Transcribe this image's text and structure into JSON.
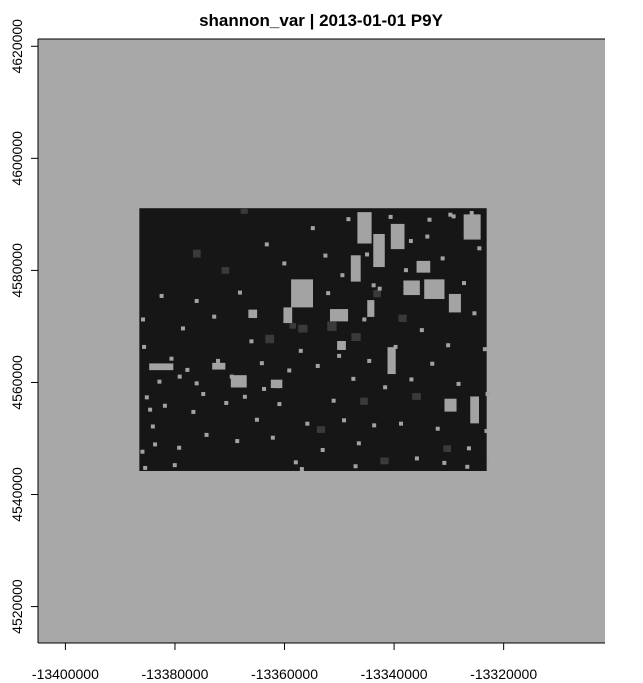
{
  "chart_data": {
    "type": "heatmap",
    "title": "shannon_var | 2013-01-01 P9Y",
    "xlabel": "",
    "ylabel": "",
    "xlim": [
      -13405000,
      -13301500
    ],
    "ylim": [
      4513500,
      4621300
    ],
    "x_ticks": [
      -13400000,
      -13380000,
      -13360000,
      -13340000,
      -13320000
    ],
    "x_tick_labels": [
      "-13400000",
      "-13380000",
      "-13360000",
      "-13340000",
      "-13320000"
    ],
    "y_ticks": [
      4520000,
      4540000,
      4560000,
      4580000,
      4600000,
      4620000
    ],
    "y_tick_labels": [
      "4520000",
      "4540000",
      "4560000",
      "4580000",
      "4600000",
      "4620000"
    ],
    "raster_extent": {
      "xmin": -13386500,
      "xmax": -13323100,
      "ymin": 4544200,
      "ymax": 4591100
    },
    "grid": false,
    "legend": "none",
    "colors": {
      "background": "#a8a8a8",
      "raster_low": "#161616",
      "raster_mid": "#3a3a3a",
      "raster_high": "#a3a3a3",
      "axis": "#000000"
    },
    "patches": [
      {
        "x0": -13358800,
        "x1": -13354800,
        "y0": 4573400,
        "y1": 4578400,
        "level": "high"
      },
      {
        "x0": -13360200,
        "x1": -13358600,
        "y0": 4570600,
        "y1": 4573400,
        "level": "high"
      },
      {
        "x0": -13346700,
        "x1": -13344100,
        "y0": 4584800,
        "y1": 4590400,
        "level": "high"
      },
      {
        "x0": -13343800,
        "x1": -13341700,
        "y0": 4580600,
        "y1": 4586500,
        "level": "high"
      },
      {
        "x0": -13340600,
        "x1": -13338100,
        "y0": 4583800,
        "y1": 4588300,
        "level": "high"
      },
      {
        "x0": -13334500,
        "x1": -13330800,
        "y0": 4574900,
        "y1": 4578400,
        "level": "high"
      },
      {
        "x0": -13330000,
        "x1": -13327800,
        "y0": 4572500,
        "y1": 4575800,
        "level": "high"
      },
      {
        "x0": -13327300,
        "x1": -13324200,
        "y0": 4585500,
        "y1": 4590000,
        "level": "high"
      },
      {
        "x0": -13338300,
        "x1": -13335300,
        "y0": 4575600,
        "y1": 4578200,
        "level": "high"
      },
      {
        "x0": -13341200,
        "x1": -13339700,
        "y0": 4561500,
        "y1": 4566300,
        "level": "high"
      },
      {
        "x0": -13369800,
        "x1": -13366900,
        "y0": 4559100,
        "y1": 4561300,
        "level": "high"
      },
      {
        "x0": -13384700,
        "x1": -13380300,
        "y0": 4562200,
        "y1": 4563400,
        "level": "high"
      },
      {
        "x0": -13351700,
        "x1": -13348400,
        "y0": 4570900,
        "y1": 4573100,
        "level": "high"
      },
      {
        "x0": -13326100,
        "x1": -13324500,
        "y0": 4552700,
        "y1": 4557500,
        "level": "high"
      },
      {
        "x0": -13330800,
        "x1": -13328600,
        "y0": 4554800,
        "y1": 4557100,
        "level": "high"
      },
      {
        "x0": -13362500,
        "x1": -13360400,
        "y0": 4559000,
        "y1": 4560500,
        "level": "high"
      },
      {
        "x0": -13373200,
        "x1": -13370800,
        "y0": 4562300,
        "y1": 4563500,
        "level": "high"
      },
      {
        "x0": -13350400,
        "x1": -13348800,
        "y0": 4565800,
        "y1": 4567400,
        "level": "high"
      },
      {
        "x0": -13335900,
        "x1": -13333400,
        "y0": 4579600,
        "y1": 4581700,
        "level": "high"
      },
      {
        "x0": -13366600,
        "x1": -13365000,
        "y0": 4571500,
        "y1": 4573000,
        "level": "high"
      },
      {
        "x0": -13347900,
        "x1": -13346100,
        "y0": 4578000,
        "y1": 4582700,
        "level": "high"
      },
      {
        "x0": -13344900,
        "x1": -13343600,
        "y0": 4571700,
        "y1": 4574700,
        "level": "high"
      },
      {
        "x0": -13322900,
        "x1": -13322700,
        "y0": 4544800,
        "y1": 4546400,
        "level": "high"
      },
      {
        "x0": -13352200,
        "x1": -13350500,
        "y0": 4569200,
        "y1": 4570900,
        "level": "mid"
      },
      {
        "x0": -13357500,
        "x1": -13355800,
        "y0": 4568900,
        "y1": 4570300,
        "level": "mid"
      },
      {
        "x0": -13363500,
        "x1": -13361900,
        "y0": 4567000,
        "y1": 4568500,
        "level": "mid"
      },
      {
        "x0": -13347800,
        "x1": -13346100,
        "y0": 4567400,
        "y1": 4568800,
        "level": "mid"
      },
      {
        "x0": -13339200,
        "x1": -13337700,
        "y0": 4570800,
        "y1": 4572100,
        "level": "mid"
      },
      {
        "x0": -13343800,
        "x1": -13342400,
        "y0": 4575200,
        "y1": 4576500,
        "level": "mid"
      },
      {
        "x0": -13376700,
        "x1": -13375300,
        "y0": 4582300,
        "y1": 4583700,
        "level": "mid"
      },
      {
        "x0": -13368000,
        "x1": -13366700,
        "y0": 4590100,
        "y1": 4591000,
        "level": "mid"
      },
      {
        "x0": -13359100,
        "x1": -13357900,
        "y0": 4569600,
        "y1": 4570600,
        "level": "mid"
      },
      {
        "x0": -13346200,
        "x1": -13344800,
        "y0": 4556000,
        "y1": 4557300,
        "level": "mid"
      },
      {
        "x0": -13371500,
        "x1": -13370100,
        "y0": 4579400,
        "y1": 4580600,
        "level": "mid"
      },
      {
        "x0": -13354100,
        "x1": -13352600,
        "y0": 4551000,
        "y1": 4552200,
        "level": "mid"
      },
      {
        "x0": -13331000,
        "x1": -13329600,
        "y0": 4547600,
        "y1": 4548800,
        "level": "mid"
      },
      {
        "x0": -13336700,
        "x1": -13335100,
        "y0": 4556900,
        "y1": 4558100,
        "level": "mid"
      },
      {
        "x0": -13342500,
        "x1": -13341000,
        "y0": 4545400,
        "y1": 4546600,
        "level": "mid"
      }
    ],
    "speckles": [
      [
        -13386200,
        4571600
      ],
      [
        -13386000,
        4566700
      ],
      [
        -13385500,
        4557700
      ],
      [
        -13384900,
        4555500
      ],
      [
        -13384400,
        4552500
      ],
      [
        -13384000,
        4549300
      ],
      [
        -13382800,
        4575800
      ],
      [
        -13382200,
        4556200
      ],
      [
        -13381000,
        4564600
      ],
      [
        -13379600,
        4548700
      ],
      [
        -13378900,
        4570000
      ],
      [
        -13378100,
        4562600
      ],
      [
        -13377000,
        4555100
      ],
      [
        -13376400,
        4574900
      ],
      [
        -13375200,
        4558300
      ],
      [
        -13374600,
        4551000
      ],
      [
        -13373200,
        4572100
      ],
      [
        -13372500,
        4564200
      ],
      [
        -13371000,
        4556700
      ],
      [
        -13370000,
        4561400
      ],
      [
        -13369000,
        4549900
      ],
      [
        -13368500,
        4576400
      ],
      [
        -13367600,
        4557800
      ],
      [
        -13366400,
        4567700
      ],
      [
        -13365400,
        4553700
      ],
      [
        -13364500,
        4563800
      ],
      [
        -13363600,
        4585000
      ],
      [
        -13362500,
        4550500
      ],
      [
        -13361300,
        4556500
      ],
      [
        -13360400,
        4581600
      ],
      [
        -13359500,
        4562500
      ],
      [
        -13358300,
        4546100
      ],
      [
        -13357400,
        4566000
      ],
      [
        -13356200,
        4553000
      ],
      [
        -13355200,
        4587900
      ],
      [
        -13354300,
        4563300
      ],
      [
        -13353400,
        4548300
      ],
      [
        -13352400,
        4576300
      ],
      [
        -13351400,
        4557100
      ],
      [
        -13350400,
        4565100
      ],
      [
        -13349500,
        4553600
      ],
      [
        -13348700,
        4589500
      ],
      [
        -13347800,
        4561000
      ],
      [
        -13346800,
        4549500
      ],
      [
        -13345800,
        4571600
      ],
      [
        -13344900,
        4564200
      ],
      [
        -13344000,
        4552700
      ],
      [
        -13343000,
        4577100
      ],
      [
        -13342000,
        4559500
      ],
      [
        -13341000,
        4589900
      ],
      [
        -13340100,
        4566700
      ],
      [
        -13339100,
        4553000
      ],
      [
        -13338200,
        4580400
      ],
      [
        -13337200,
        4560900
      ],
      [
        -13336200,
        4546800
      ],
      [
        -13335300,
        4569700
      ],
      [
        -13334300,
        4586400
      ],
      [
        -13333400,
        4563700
      ],
      [
        -13332400,
        4552100
      ],
      [
        -13331500,
        4582500
      ],
      [
        -13330500,
        4567000
      ],
      [
        -13329500,
        4590000
      ],
      [
        -13328600,
        4560100
      ],
      [
        -13327600,
        4578100
      ],
      [
        -13326700,
        4548600
      ],
      [
        -13325700,
        4572700
      ],
      [
        -13324800,
        4584300
      ],
      [
        -13323800,
        4566300
      ],
      [
        -13323500,
        4551700
      ],
      [
        -13326200,
        4590600
      ],
      [
        -13330100,
        4590300
      ],
      [
        -13333900,
        4589400
      ],
      [
        -13337300,
        4585600
      ],
      [
        -13345300,
        4583200
      ],
      [
        -13344100,
        4577700
      ],
      [
        -13349800,
        4579500
      ],
      [
        -13352900,
        4583000
      ],
      [
        -13361500,
        4559700
      ],
      [
        -13364100,
        4559200
      ],
      [
        -13376400,
        4560200
      ],
      [
        -13379500,
        4561400
      ],
      [
        -13383200,
        4560500
      ],
      [
        -13386300,
        4548000
      ],
      [
        -13385800,
        4545100
      ],
      [
        -13380400,
        4545600
      ],
      [
        -13357200,
        4544900
      ],
      [
        -13347400,
        4545400
      ],
      [
        -13331200,
        4546000
      ],
      [
        -13327000,
        4545300
      ],
      [
        -13323300,
        4558300
      ]
    ]
  }
}
